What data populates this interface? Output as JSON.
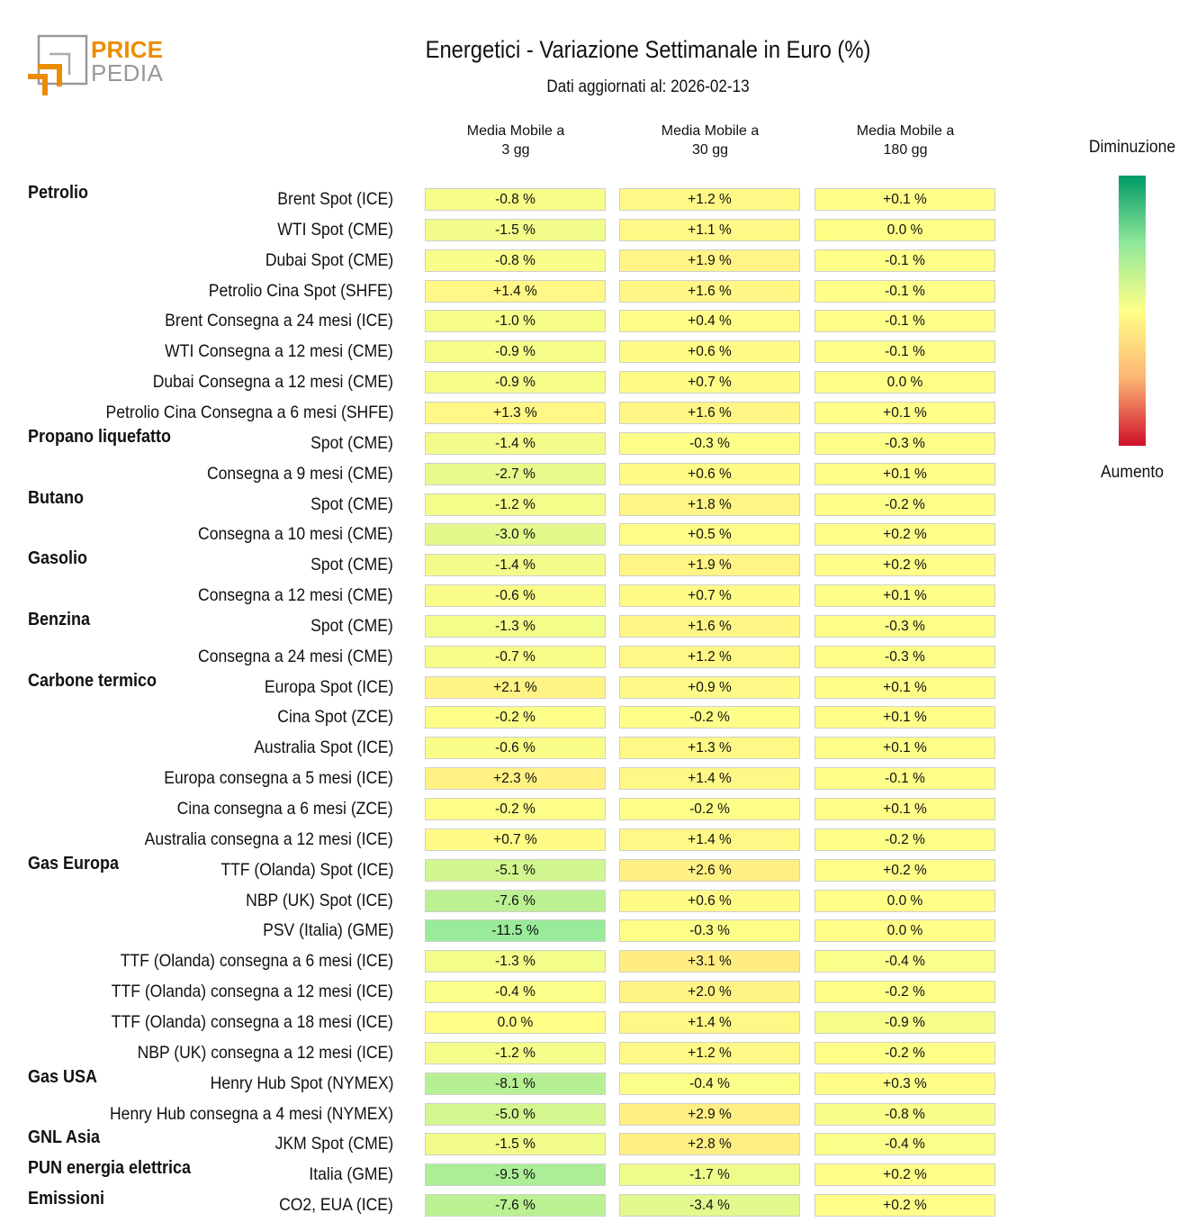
{
  "logo": {
    "text_top": "PRICE",
    "text_bottom": "PEDIA"
  },
  "chart_data": {
    "type": "heatmap",
    "title": "Energetici - Variazione Settimanale in Euro (%)",
    "subtitle": "Dati aggiornati al: 2026-02-13",
    "columns": [
      "Media Mobile a\n3 gg",
      "Media Mobile a\n30 gg",
      "Media Mobile a\n180 gg"
    ],
    "legend": {
      "top": "Diminuzione",
      "bottom": "Aumento",
      "colors": [
        "#009966",
        "#90e89a",
        "#ffff88",
        "#fdb574",
        "#cf0f2a"
      ]
    },
    "unit": "%",
    "rows": [
      {
        "group": "Petrolio",
        "label": "Brent Spot (ICE)",
        "values": [
          -0.8,
          1.2,
          0.1
        ]
      },
      {
        "group": "",
        "label": "WTI Spot (CME)",
        "values": [
          -1.5,
          1.1,
          0.0
        ]
      },
      {
        "group": "",
        "label": "Dubai Spot (CME)",
        "values": [
          -0.8,
          1.9,
          -0.1
        ]
      },
      {
        "group": "",
        "label": "Petrolio Cina Spot (SHFE)",
        "values": [
          1.4,
          1.6,
          -0.1
        ]
      },
      {
        "group": "",
        "label": "Brent Consegna a 24 mesi (ICE)",
        "values": [
          -1.0,
          0.4,
          -0.1
        ]
      },
      {
        "group": "",
        "label": "WTI Consegna a 12 mesi (CME)",
        "values": [
          -0.9,
          0.6,
          -0.1
        ]
      },
      {
        "group": "",
        "label": "Dubai Consegna a 12 mesi (CME)",
        "values": [
          -0.9,
          0.7,
          0.0
        ]
      },
      {
        "group": "",
        "label": "Petrolio Cina Consegna a 6 mesi (SHFE)",
        "values": [
          1.3,
          1.6,
          0.1
        ]
      },
      {
        "group": "Propano liquefatto",
        "label": "Spot (CME)",
        "values": [
          -1.4,
          -0.3,
          -0.3
        ]
      },
      {
        "group": "",
        "label": "Consegna a 9 mesi (CME)",
        "values": [
          -2.7,
          0.6,
          0.1
        ]
      },
      {
        "group": "Butano",
        "label": "Spot (CME)",
        "values": [
          -1.2,
          1.8,
          -0.2
        ]
      },
      {
        "group": "",
        "label": "Consegna a 10 mesi (CME)",
        "values": [
          -3.0,
          0.5,
          0.2
        ]
      },
      {
        "group": "Gasolio",
        "label": "Spot (CME)",
        "values": [
          -1.4,
          1.9,
          0.2
        ]
      },
      {
        "group": "",
        "label": "Consegna a 12 mesi (CME)",
        "values": [
          -0.6,
          0.7,
          0.1
        ]
      },
      {
        "group": "Benzina",
        "label": "Spot (CME)",
        "values": [
          -1.3,
          1.6,
          -0.3
        ]
      },
      {
        "group": "",
        "label": "Consegna a 24 mesi (CME)",
        "values": [
          -0.7,
          1.2,
          -0.3
        ]
      },
      {
        "group": "Carbone termico",
        "label": "Europa Spot (ICE)",
        "values": [
          2.1,
          0.9,
          0.1
        ]
      },
      {
        "group": "",
        "label": "Cina Spot (ZCE)",
        "values": [
          -0.2,
          -0.2,
          0.1
        ]
      },
      {
        "group": "",
        "label": "Australia Spot (ICE)",
        "values": [
          -0.6,
          1.3,
          0.1
        ]
      },
      {
        "group": "",
        "label": "Europa consegna a 5 mesi (ICE)",
        "values": [
          2.3,
          1.4,
          -0.1
        ]
      },
      {
        "group": "",
        "label": "Cina consegna a 6 mesi (ZCE)",
        "values": [
          -0.2,
          -0.2,
          0.1
        ]
      },
      {
        "group": "",
        "label": "Australia consegna a 12 mesi (ICE)",
        "values": [
          0.7,
          1.4,
          -0.2
        ]
      },
      {
        "group": "Gas Europa",
        "label": "TTF (Olanda) Spot (ICE)",
        "values": [
          -5.1,
          2.6,
          0.2
        ]
      },
      {
        "group": "",
        "label": "NBP (UK) Spot (ICE)",
        "values": [
          -7.6,
          0.6,
          0.0
        ]
      },
      {
        "group": "",
        "label": "PSV (Italia) (GME)",
        "values": [
          -11.5,
          -0.3,
          0.0
        ]
      },
      {
        "group": "",
        "label": "TTF (Olanda) consegna a 6 mesi (ICE)",
        "values": [
          -1.3,
          3.1,
          -0.4
        ]
      },
      {
        "group": "",
        "label": "TTF (Olanda) consegna a 12 mesi (ICE)",
        "values": [
          -0.4,
          2.0,
          -0.2
        ]
      },
      {
        "group": "",
        "label": "TTF (Olanda) consegna a 18 mesi (ICE)",
        "values": [
          0.0,
          1.4,
          -0.9
        ]
      },
      {
        "group": "",
        "label": "NBP (UK) consegna a 12 mesi (ICE)",
        "values": [
          -1.2,
          1.2,
          -0.2
        ]
      },
      {
        "group": "Gas USA",
        "label": "Henry Hub Spot (NYMEX)",
        "values": [
          -8.1,
          -0.4,
          0.3
        ]
      },
      {
        "group": "",
        "label": "Henry Hub consegna a 4 mesi (NYMEX)",
        "values": [
          -5.0,
          2.9,
          -0.8
        ]
      },
      {
        "group": "GNL Asia",
        "label": "JKM Spot (CME)",
        "values": [
          -1.5,
          2.8,
          -0.4
        ]
      },
      {
        "group": "PUN energia elettrica",
        "label": "Italia (GME)",
        "values": [
          -9.5,
          -1.7,
          0.2
        ]
      },
      {
        "group": "Emissioni",
        "label": "CO2, EUA (ICE)",
        "values": [
          -7.6,
          -3.4,
          0.2
        ]
      }
    ]
  }
}
